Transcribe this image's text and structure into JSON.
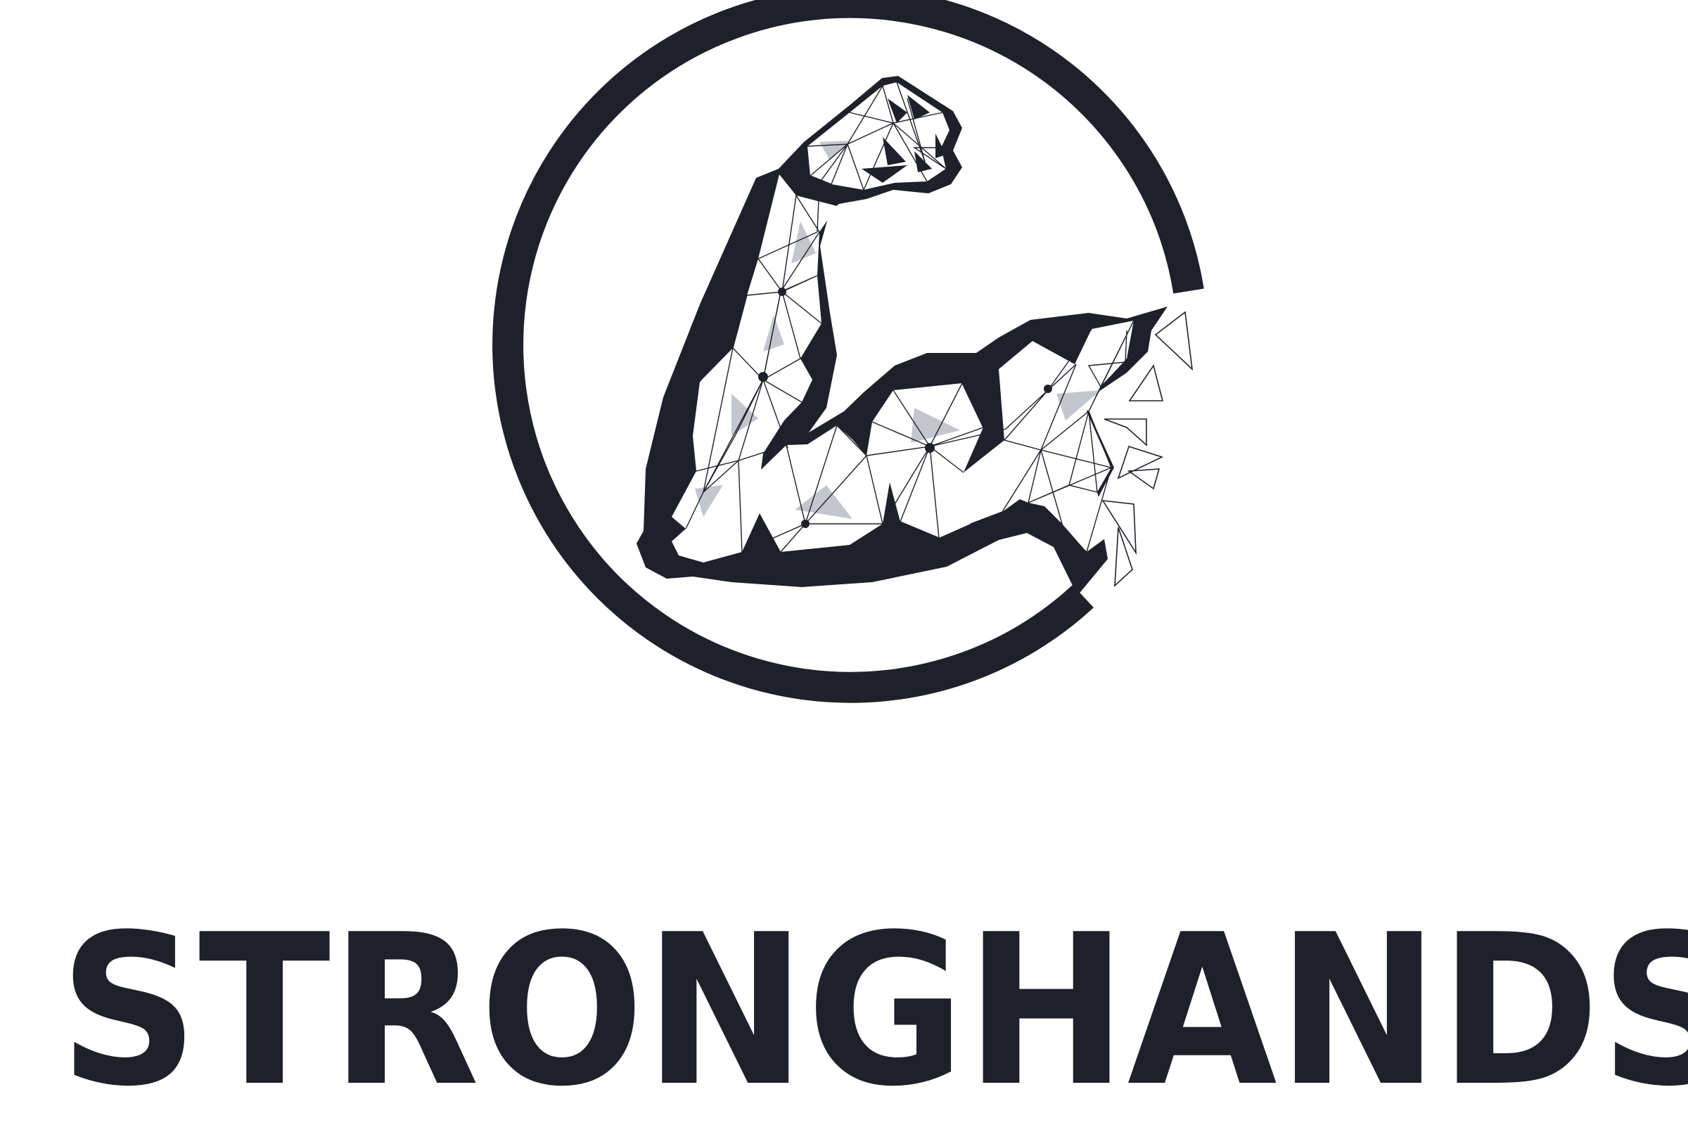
{
  "brand": {
    "name": "STRONGHANDS"
  },
  "colors": {
    "primary": "#1e212a",
    "accent": "#c4c6ce",
    "background": "#ffffff"
  },
  "icons": {
    "emblem": "flexed-arm-icon"
  }
}
